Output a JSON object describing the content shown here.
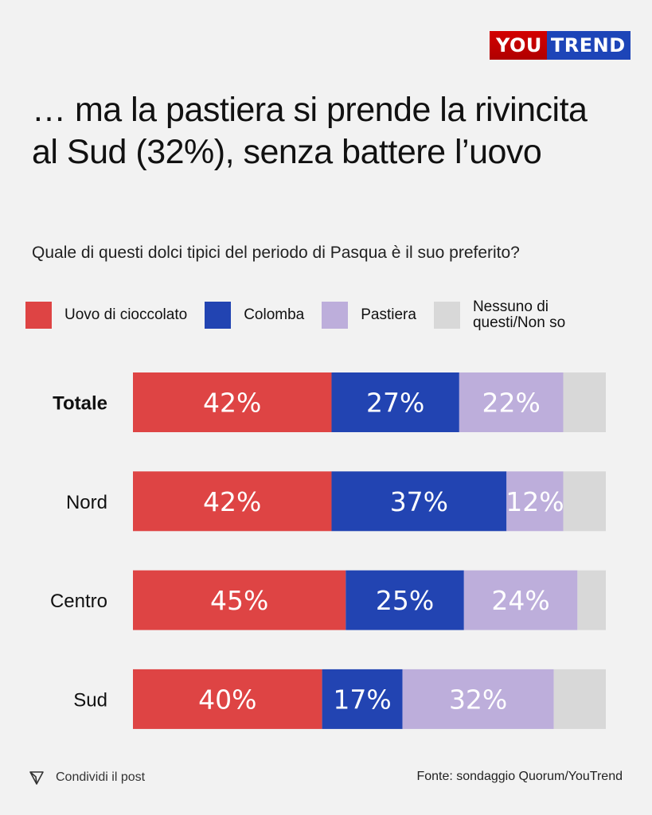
{
  "brand": {
    "part1": "YOU",
    "part2": "TREND"
  },
  "title": "… ma la pastiera si prende la rivincita al Sud (32%), senza battere l’uovo",
  "subtitle": "Quale di questi dolci tipici del periodo di Pasqua è il suo preferito?",
  "footer": {
    "share_label": "Condividi il post",
    "share_icon": "send-icon",
    "source": "Fonte: sondaggio Quorum/YouTrend"
  },
  "chart_data": {
    "type": "bar",
    "orientation": "horizontal",
    "stacked": true,
    "title": "… ma la pastiera si prende la rivincita al Sud (32%), senza battere l’uovo",
    "subtitle": "Quale di questi dolci tipici del periodo di Pasqua è il suo preferito?",
    "categories": [
      "Totale",
      "Nord",
      "Centro",
      "Sud"
    ],
    "bold_categories": [
      "Totale"
    ],
    "legend_position": "top",
    "xlim": [
      0,
      100
    ],
    "series": [
      {
        "name": "Uovo di cioccolato",
        "color": "#de4444",
        "values": [
          42,
          42,
          45,
          40
        ],
        "labels": [
          "42%",
          "42%",
          "45%",
          "40%"
        ]
      },
      {
        "name": "Colomba",
        "color": "#2244b2",
        "values": [
          27,
          37,
          25,
          17
        ],
        "labels": [
          "27%",
          "37%",
          "25%",
          "17%"
        ]
      },
      {
        "name": "Pastiera",
        "color": "#bdaedb",
        "values": [
          22,
          12,
          24,
          32
        ],
        "labels": [
          "22%",
          "12%",
          "24%",
          "32%"
        ]
      },
      {
        "name": "Nessuno di questi/Non so",
        "color": "#d8d8d8",
        "values": [
          9,
          9,
          6,
          11
        ],
        "labels": [
          "",
          "",
          "",
          ""
        ]
      }
    ]
  }
}
